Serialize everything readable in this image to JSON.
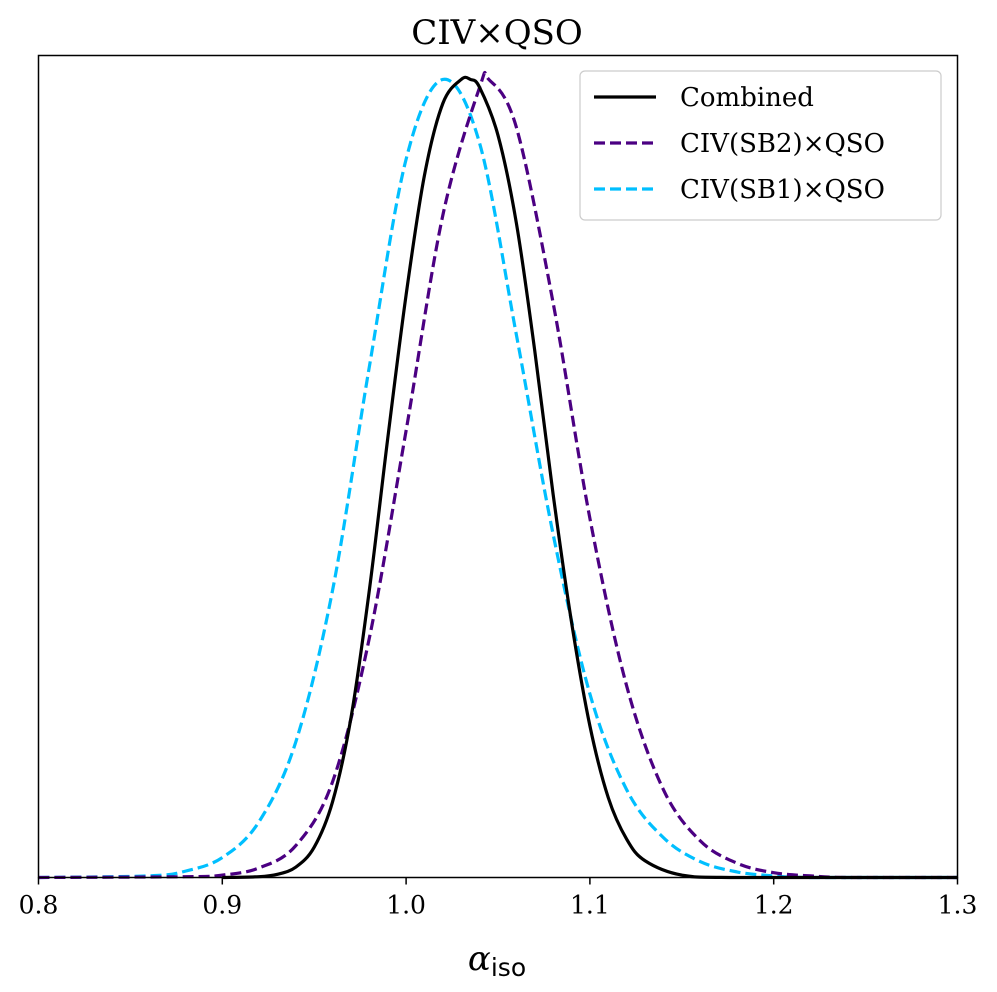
{
  "chart_data": {
    "type": "line",
    "title": "CIV×QSO",
    "xlabel": "α",
    "xlabel_subscript": "iso",
    "ylabel": "",
    "xlim": [
      0.8,
      1.3
    ],
    "ylim": [
      0,
      1.03
    ],
    "x_ticks": [
      0.8,
      0.9,
      1.0,
      1.1,
      1.2,
      1.3
    ],
    "x_tick_labels": [
      "0.8",
      "0.9",
      "1.0",
      "1.1",
      "1.2",
      "1.3"
    ],
    "y_ticks_shown": false,
    "grid": false,
    "legend_position": "top-right",
    "series": [
      {
        "name": "Combined",
        "color": "#000000",
        "style": "solid",
        "peak": 1.0,
        "x": [
          0.9,
          0.92,
          0.93,
          0.94,
          0.95,
          0.96,
          0.97,
          0.98,
          0.99,
          1.0,
          1.01,
          1.02,
          1.03,
          1.035,
          1.04,
          1.05,
          1.06,
          1.07,
          1.08,
          1.09,
          1.1,
          1.11,
          1.12,
          1.13,
          1.15,
          1.18,
          1.3
        ],
        "y": [
          0.0,
          0.001,
          0.004,
          0.013,
          0.038,
          0.095,
          0.2,
          0.36,
          0.55,
          0.73,
          0.88,
          0.97,
          1.0,
          1.0,
          0.99,
          0.93,
          0.82,
          0.66,
          0.48,
          0.32,
          0.19,
          0.1,
          0.048,
          0.021,
          0.003,
          0.0,
          0.0
        ]
      },
      {
        "name": "CIV(SB2)×QSO",
        "color": "#4b0082",
        "style": "dashed",
        "peak": 1.0,
        "x": [
          0.8,
          0.88,
          0.9,
          0.92,
          0.94,
          0.96,
          0.98,
          1.0,
          1.02,
          1.04,
          1.045,
          1.06,
          1.08,
          1.1,
          1.12,
          1.14,
          1.16,
          1.18,
          1.2,
          1.22,
          1.24,
          1.3
        ],
        "y": [
          0.0,
          0.001,
          0.003,
          0.012,
          0.04,
          0.12,
          0.3,
          0.56,
          0.83,
          0.99,
          1.0,
          0.94,
          0.72,
          0.45,
          0.24,
          0.11,
          0.046,
          0.018,
          0.006,
          0.002,
          0.0,
          0.0
        ]
      },
      {
        "name": "CIV(SB1)×QSO",
        "color": "#00bfff",
        "style": "dashed",
        "peak": 1.0,
        "x": [
          0.8,
          0.86,
          0.88,
          0.9,
          0.92,
          0.94,
          0.96,
          0.98,
          1.0,
          1.02,
          1.04,
          1.06,
          1.08,
          1.1,
          1.12,
          1.14,
          1.16,
          1.18,
          1.2,
          1.22,
          1.3
        ],
        "y": [
          0.0,
          0.002,
          0.008,
          0.025,
          0.07,
          0.17,
          0.36,
          0.64,
          0.9,
          1.0,
          0.92,
          0.68,
          0.43,
          0.23,
          0.11,
          0.05,
          0.02,
          0.007,
          0.002,
          0.0,
          0.0
        ]
      }
    ]
  }
}
